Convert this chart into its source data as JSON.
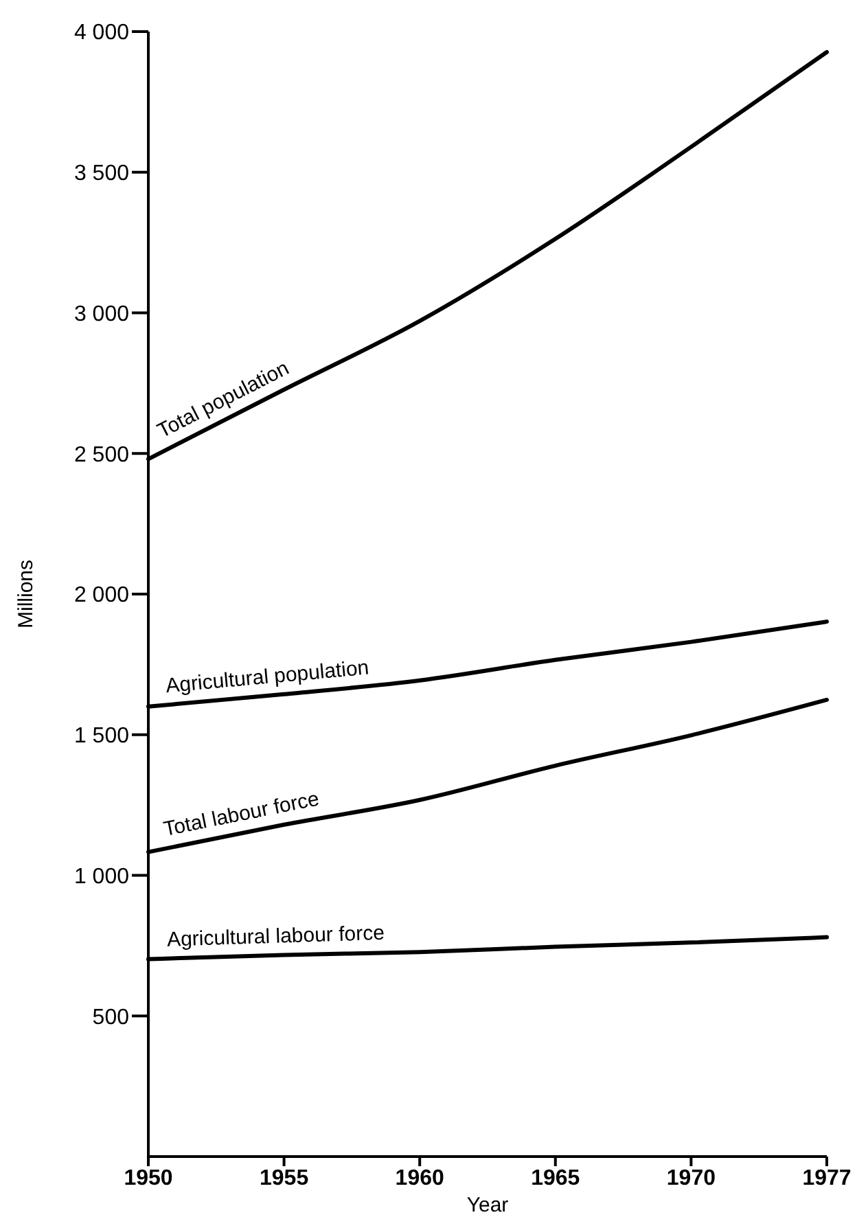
{
  "chart_data": {
    "type": "line",
    "xlabel": "Year",
    "ylabel": "Millions",
    "categories": [
      "1950",
      "1955",
      "1960",
      "1965",
      "1970",
      "1977"
    ],
    "series": [
      {
        "name": "Total population",
        "color": "#000000",
        "values": [
          2480,
          2727,
          2971,
          3263,
          3590,
          3927
        ]
      },
      {
        "name": "Agricultural population",
        "color": "#000000",
        "values": [
          1600,
          1644,
          1693,
          1766,
          1830,
          1902
        ]
      },
      {
        "name": "Total labour force",
        "color": "#000000",
        "values": [
          1083,
          1180,
          1268,
          1390,
          1498,
          1624
        ]
      },
      {
        "name": "Agricultural labour force",
        "color": "#000000",
        "values": [
          702,
          717,
          727,
          746,
          761,
          780
        ]
      }
    ],
    "ylim": [
      0,
      4000
    ],
    "yticks": [
      {
        "value": 500,
        "label": "500"
      },
      {
        "value": 1000,
        "label": "1 000"
      },
      {
        "value": 1500,
        "label": "1 500"
      },
      {
        "value": 2000,
        "label": "2 000"
      },
      {
        "value": 2500,
        "label": "2 500"
      },
      {
        "value": 3000,
        "label": "3 000"
      },
      {
        "value": 3500,
        "label": "3 500"
      },
      {
        "value": 4000,
        "label": "4 000"
      }
    ],
    "grid": false,
    "legend": false,
    "marker": "none",
    "line_style": "solid"
  }
}
